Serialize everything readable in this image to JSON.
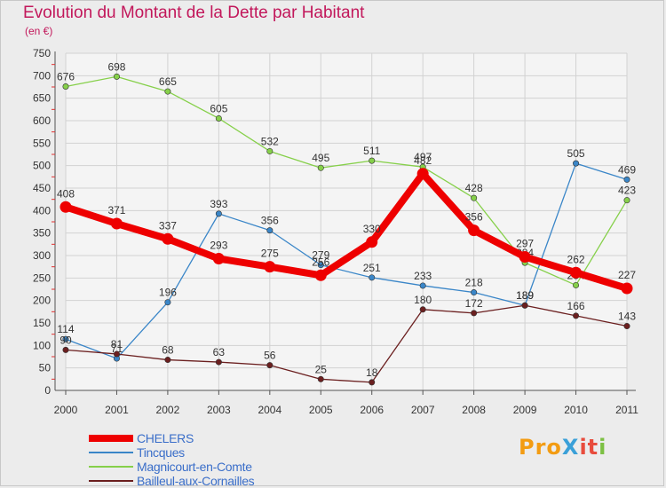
{
  "title": "Evolution du Montant de la Dette par Habitant",
  "subtitle": "(en €)",
  "logo": {
    "text": "ProXiti",
    "letters": [
      "Pro",
      "X",
      "it",
      "i"
    ]
  },
  "chart_data": {
    "type": "line",
    "x": [
      "2000",
      "2001",
      "2002",
      "2003",
      "2004",
      "2005",
      "2006",
      "2007",
      "2008",
      "2009",
      "2010",
      "2011"
    ],
    "ylim": [
      0,
      750
    ],
    "yticks": [
      0,
      50,
      100,
      150,
      200,
      250,
      300,
      350,
      400,
      450,
      500,
      550,
      600,
      650,
      700,
      750
    ],
    "grid": true,
    "legend_position": "bottom-left",
    "series": [
      {
        "name": "Tincques",
        "color": "#3a86c8",
        "values": [
          114,
          71,
          196,
          393,
          356,
          279,
          251,
          233,
          218,
          189,
          505,
          469
        ]
      },
      {
        "name": "Magnicourt-en-Comte",
        "color": "#86d04a",
        "values": [
          676,
          698,
          665,
          605,
          532,
          495,
          511,
          497,
          428,
          284,
          234,
          423
        ]
      },
      {
        "name": "Bailleul-aux-Cornailles",
        "color": "#6b1f1f",
        "values": [
          90,
          81,
          68,
          63,
          56,
          25,
          18,
          180,
          172,
          189,
          166,
          143
        ]
      },
      {
        "name": "CHELERS",
        "color": "#ee0000",
        "values": [
          408,
          371,
          337,
          293,
          275,
          256,
          330,
          482,
          356,
          297,
          262,
          227
        ]
      }
    ],
    "legend": [
      {
        "name": "CHELERS",
        "color": "#ee0000"
      },
      {
        "name": "Tincques",
        "color": "#3a86c8"
      },
      {
        "name": "Magnicourt-en-Comte",
        "color": "#86d04a"
      },
      {
        "name": "Bailleul-aux-Cornailles",
        "color": "#6b1f1f"
      }
    ]
  }
}
